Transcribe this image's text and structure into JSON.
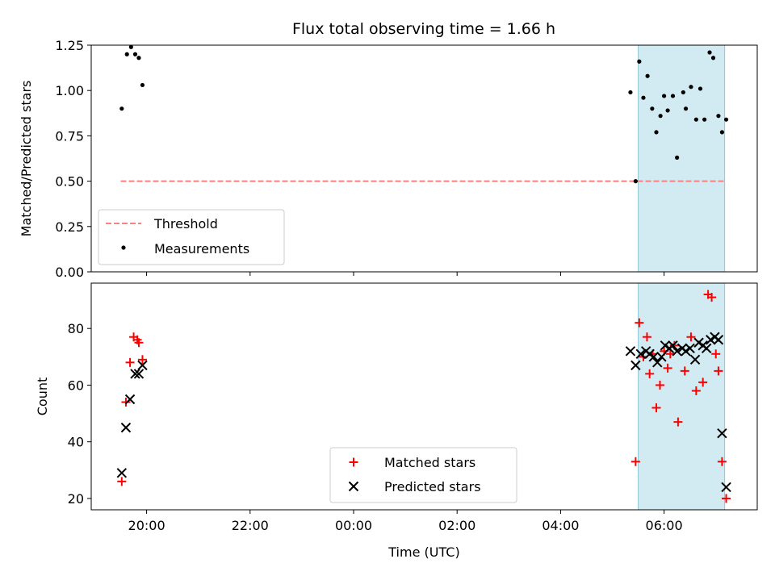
{
  "chart_data": {
    "type": "scatter",
    "title": "Flux total observing time = 1.66 h",
    "xlabel": "Time (UTC)",
    "x_tick_labels": [
      "20:00",
      "22:00",
      "00:00",
      "02:00",
      "04:00",
      "06:00"
    ],
    "x_tick_hours": [
      20,
      22,
      24,
      26,
      28,
      30
    ],
    "xlim_hours": [
      18.93,
      31.8
    ],
    "shaded_region_hours": [
      29.5,
      31.17
    ],
    "shaded_color": "#add8e6",
    "panels": [
      {
        "ylabel": "Matched/Predicted stars",
        "ylim": [
          0.0,
          1.25
        ],
        "y_ticks": [
          "0.00",
          "0.25",
          "0.50",
          "0.75",
          "1.00",
          "1.25"
        ],
        "y_tick_values": [
          0.0,
          0.25,
          0.5,
          0.75,
          1.0,
          1.25
        ],
        "legend": [
          {
            "label": "Threshold",
            "style": "dashed-line",
            "color": "#ff7f7f"
          },
          {
            "label": "Measurements",
            "style": "dot",
            "color": "#000000"
          }
        ],
        "legend_position": "lower-left",
        "threshold": {
          "y": 0.5,
          "x_range_hours": [
            19.5,
            31.2
          ],
          "color": "#ff7f7f"
        },
        "measurements": {
          "color": "#000000",
          "x": [
            19.52,
            19.62,
            19.7,
            19.78,
            19.85,
            19.92,
            29.35,
            29.45,
            29.52,
            29.6,
            29.68,
            29.77,
            29.85,
            29.93,
            30.0,
            30.07,
            30.17,
            30.25,
            30.37,
            30.42,
            30.52,
            30.62,
            30.7,
            30.78,
            30.88,
            30.95,
            31.05,
            31.12,
            31.2
          ],
          "y": [
            0.9,
            1.2,
            1.24,
            1.2,
            1.18,
            1.03,
            0.99,
            0.5,
            1.16,
            0.96,
            1.08,
            0.9,
            0.77,
            0.86,
            0.97,
            0.89,
            0.97,
            0.63,
            0.99,
            0.9,
            1.02,
            0.84,
            1.01,
            0.84,
            1.21,
            1.18,
            0.86,
            0.77,
            0.84
          ]
        }
      },
      {
        "ylabel": "Count",
        "ylim": [
          16,
          96
        ],
        "y_ticks": [
          "20",
          "40",
          "60",
          "80"
        ],
        "y_tick_values": [
          20,
          40,
          60,
          80
        ],
        "legend": [
          {
            "label": "Matched stars",
            "style": "plus",
            "color": "#ff0000"
          },
          {
            "label": "Predicted stars",
            "style": "x",
            "color": "#000000"
          }
        ],
        "legend_position": "lower-center",
        "series": [
          {
            "name": "Matched stars",
            "marker": "plus",
            "color": "#ff0000",
            "x": [
              19.52,
              19.6,
              19.68,
              19.75,
              19.82,
              19.85,
              19.92,
              29.45,
              29.52,
              29.6,
              29.67,
              29.72,
              29.78,
              29.85,
              29.92,
              30.0,
              30.07,
              30.12,
              30.2,
              30.27,
              30.4,
              30.52,
              30.62,
              30.75,
              30.85,
              30.92,
              31.0,
              31.05,
              31.12,
              31.2
            ],
            "y": [
              26,
              54,
              68,
              77,
              76,
              75,
              69,
              33,
              82,
              70,
              77,
              64,
              71,
              52,
              60,
              72,
              66,
              71,
              74,
              47,
              65,
              77,
              58,
              61,
              92,
              91,
              71,
              65,
              33,
              20
            ]
          },
          {
            "name": "Predicted stars",
            "marker": "x",
            "color": "#000000",
            "x": [
              19.52,
              19.6,
              19.68,
              19.78,
              19.85,
              19.92,
              29.35,
              29.45,
              29.55,
              29.65,
              29.72,
              29.8,
              29.87,
              29.95,
              30.02,
              30.1,
              30.17,
              30.25,
              30.35,
              30.42,
              30.5,
              30.6,
              30.67,
              30.75,
              30.82,
              30.9,
              30.98,
              31.05,
              31.12,
              31.2
            ],
            "y": [
              29,
              45,
              55,
              64,
              64,
              67,
              72,
              67,
              71,
              72,
              71,
              70,
              68,
              70,
              74,
              73,
              74,
              72,
              73,
              72,
              73,
              69,
              75,
              74,
              73,
              76,
              77,
              76,
              43,
              24
            ]
          }
        ]
      }
    ]
  }
}
